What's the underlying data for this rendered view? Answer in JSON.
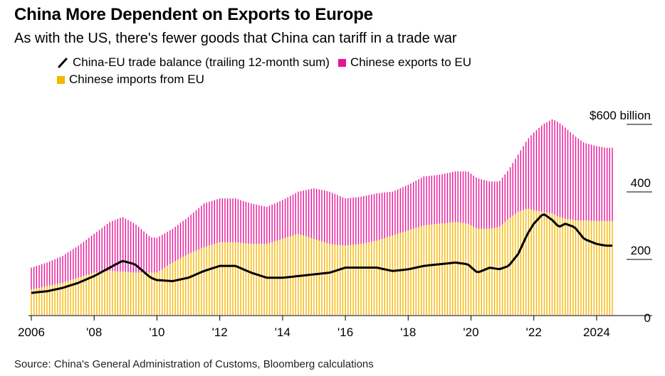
{
  "title": "China More Dependent on Exports to Europe",
  "subtitle": "As with the US, there's fewer goods that China can tariff in a trade war",
  "legend": {
    "balance": "China-EU trade balance (trailing 12-month sum)",
    "exports": "Chinese exports to EU",
    "imports": "Chinese imports from EU"
  },
  "source": "Source: China's General Administration of Customs, Bloomberg calculations",
  "colors": {
    "exports": "#e8129a",
    "imports": "#f7b500",
    "balance": "#000000",
    "axis": "#000000"
  },
  "chart_data": {
    "type": "area",
    "xlabel": "",
    "ylabel": "",
    "ylim": [
      0,
      600
    ],
    "x_tick_labels": [
      "2006",
      "'08",
      "'10",
      "'12",
      "'14",
      "'16",
      "'18",
      "'20",
      "'22",
      "2024"
    ],
    "x_tick_years": [
      2006,
      2008,
      2010,
      2012,
      2014,
      2016,
      2018,
      2020,
      2022,
      2024
    ],
    "y_tick_labels": [
      "0",
      "200",
      "400",
      "$600 billion"
    ],
    "y_tick_values": [
      0,
      200,
      400,
      600
    ],
    "x_range": [
      2006.0,
      2024.5
    ],
    "x_years": [
      2006.0,
      2006.5,
      2007.0,
      2007.5,
      2008.0,
      2008.5,
      2008.9,
      2009.3,
      2009.8,
      2010.0,
      2010.5,
      2011.0,
      2011.5,
      2012.0,
      2012.5,
      2013.0,
      2013.5,
      2014.0,
      2014.5,
      2015.0,
      2015.5,
      2016.0,
      2016.5,
      2017.0,
      2017.5,
      2018.0,
      2018.5,
      2019.0,
      2019.5,
      2019.9,
      2020.2,
      2020.6,
      2020.9,
      2021.2,
      2021.5,
      2021.8,
      2022.0,
      2022.3,
      2022.6,
      2022.8,
      2023.0,
      2023.3,
      2023.6,
      2024.0,
      2024.3
    ],
    "series": [
      {
        "name": "Chinese exports to EU",
        "values": [
          140,
          155,
          175,
          205,
          240,
          275,
          290,
          270,
          230,
          228,
          255,
          290,
          330,
          345,
          345,
          330,
          320,
          340,
          365,
          375,
          365,
          345,
          350,
          360,
          365,
          385,
          410,
          415,
          425,
          425,
          405,
          395,
          395,
          430,
          475,
          520,
          540,
          565,
          580,
          570,
          555,
          530,
          510,
          500,
          495
        ]
      },
      {
        "name": "Chinese imports from EU",
        "values": [
          75,
          85,
          95,
          110,
          125,
          130,
          128,
          125,
          125,
          125,
          155,
          180,
          200,
          215,
          215,
          210,
          210,
          225,
          240,
          225,
          210,
          205,
          210,
          220,
          235,
          250,
          265,
          270,
          275,
          270,
          255,
          255,
          260,
          285,
          305,
          315,
          310,
          305,
          300,
          290,
          285,
          280,
          280,
          278,
          278
        ]
      },
      {
        "name": "China-EU trade balance (trailing 12-month sum)",
        "values": [
          65,
          70,
          80,
          95,
          115,
          140,
          160,
          150,
          110,
          103,
          100,
          110,
          130,
          145,
          145,
          125,
          110,
          110,
          115,
          120,
          125,
          140,
          140,
          140,
          130,
          135,
          145,
          150,
          155,
          150,
          125,
          140,
          135,
          145,
          180,
          240,
          270,
          300,
          280,
          260,
          270,
          260,
          225,
          210,
          205
        ]
      }
    ]
  }
}
